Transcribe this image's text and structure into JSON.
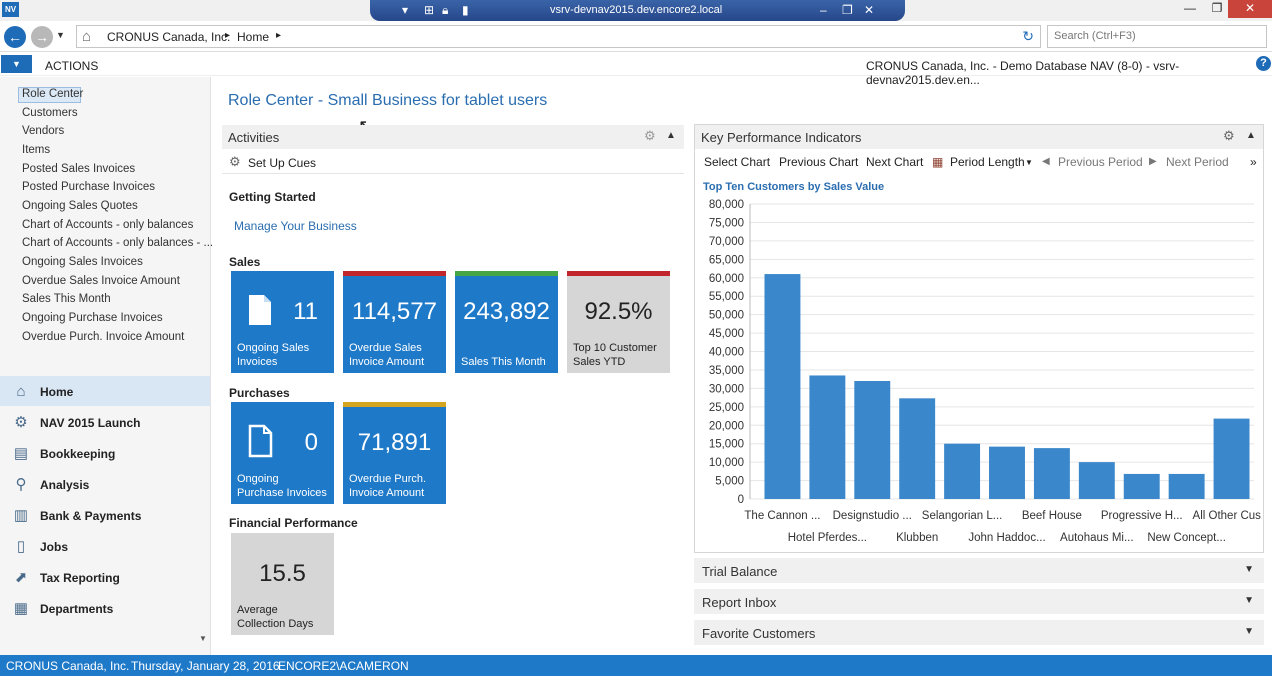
{
  "window": {
    "title": "vsrv-devnav2015.dev.encore2.local",
    "minimize_glyph": "—",
    "restore_glyph": "❐",
    "close_glyph": "✕",
    "app_icon": "nav-icon"
  },
  "address": {
    "company": "CRONUS Canada, Inc.",
    "page": "Home",
    "search_placeholder": "Search (Ctrl+F3)"
  },
  "actions": {
    "label": "ACTIONS",
    "db_info": "CRONUS Canada, Inc. - Demo Database NAV (8-0) - vsrv-devnav2015.dev.en...",
    "help": "?"
  },
  "nav": {
    "items": [
      "Role Center",
      "Customers",
      "Vendors",
      "Items",
      "Posted Sales Invoices",
      "Posted Purchase Invoices",
      "Ongoing Sales Quotes",
      "Chart of Accounts - only balances",
      "Chart of Accounts - only balances - ...",
      "Ongoing Sales Invoices",
      "Overdue Sales Invoice Amount",
      "Sales This Month",
      "Ongoing Purchase Invoices",
      "Overdue Purch. Invoice Amount"
    ],
    "departments": [
      "Home",
      "NAV 2015 Launch",
      "Bookkeeping",
      "Analysis",
      "Bank & Payments",
      "Jobs",
      "Tax Reporting",
      "Departments"
    ]
  },
  "main": {
    "title": "Role Center - Small Business for tablet users",
    "activities": {
      "title": "Activities",
      "setup_cues": "Set Up Cues",
      "getting_started": "Getting Started",
      "manage_link": "Manage Your Business",
      "sales_label": "Sales",
      "purchases_label": "Purchases",
      "financial_label": "Financial Performance",
      "tiles": {
        "ongoing_sales": {
          "value": "11",
          "label1": "Ongoing Sales",
          "label2": "Invoices"
        },
        "overdue_sales": {
          "value": "114,577",
          "label1": "Overdue Sales",
          "label2": "Invoice Amount",
          "bar_color": "#c0262c"
        },
        "sales_month": {
          "value": "243,892",
          "label1": "Sales This Month",
          "label2": "",
          "bar_color": "#46a646"
        },
        "top10": {
          "value": "92.5%",
          "label1": "Top 10 Customer",
          "label2": "Sales YTD",
          "bar_color": "#c0262c"
        },
        "ongoing_purch": {
          "value": "0",
          "label1": "Ongoing",
          "label2": "Purchase Invoices"
        },
        "overdue_purch": {
          "value": "71,891",
          "label1": "Overdue Purch.",
          "label2": "Invoice Amount",
          "bar_color": "#d4a521"
        },
        "collection": {
          "value": "15.5",
          "label1": "Average",
          "label2": "Collection Days"
        }
      }
    },
    "kpi": {
      "title": "Key Performance Indicators",
      "select_chart": "Select Chart",
      "previous_chart": "Previous Chart",
      "next_chart": "Next Chart",
      "period_length": "Period Length",
      "previous_period": "Previous Period",
      "next_period": "Next Period",
      "more": "»"
    },
    "collapsed": {
      "trial_balance": "Trial Balance",
      "report_inbox": "Report Inbox",
      "favorite_customers": "Favorite Customers"
    }
  },
  "status": {
    "company": "CRONUS Canada, Inc.",
    "date": "Thursday, January 28, 2016",
    "user": "ENCORE2\\ACAMERON"
  },
  "chart_data": {
    "type": "bar",
    "title": "Top Ten Customers by Sales Value",
    "categories": [
      "The Cannon ...",
      "Hotel Pferdes...",
      "Designstudio ...",
      "Klubben",
      "Selangorian L...",
      "John Haddoc...",
      "Beef House",
      "Autohaus Mi...",
      "Progressive H...",
      "New Concept...",
      "All Other Cus..."
    ],
    "values": [
      61000,
      33500,
      32000,
      27300,
      15000,
      14200,
      13800,
      10000,
      6800,
      6800,
      21800
    ],
    "ylim": [
      0,
      80000
    ],
    "yticks": [
      0,
      5000,
      10000,
      15000,
      20000,
      25000,
      30000,
      35000,
      40000,
      45000,
      50000,
      55000,
      60000,
      65000,
      70000,
      75000,
      80000
    ],
    "ytick_labels": [
      "0",
      "5,000",
      "10,000",
      "15,000",
      "20,000",
      "25,000",
      "30,000",
      "35,000",
      "40,000",
      "45,000",
      "50,000",
      "55,000",
      "60,000",
      "65,000",
      "70,000",
      "75,000",
      "80,000"
    ],
    "grid": true,
    "bar_color": "#3a87cb",
    "legend": "none"
  }
}
